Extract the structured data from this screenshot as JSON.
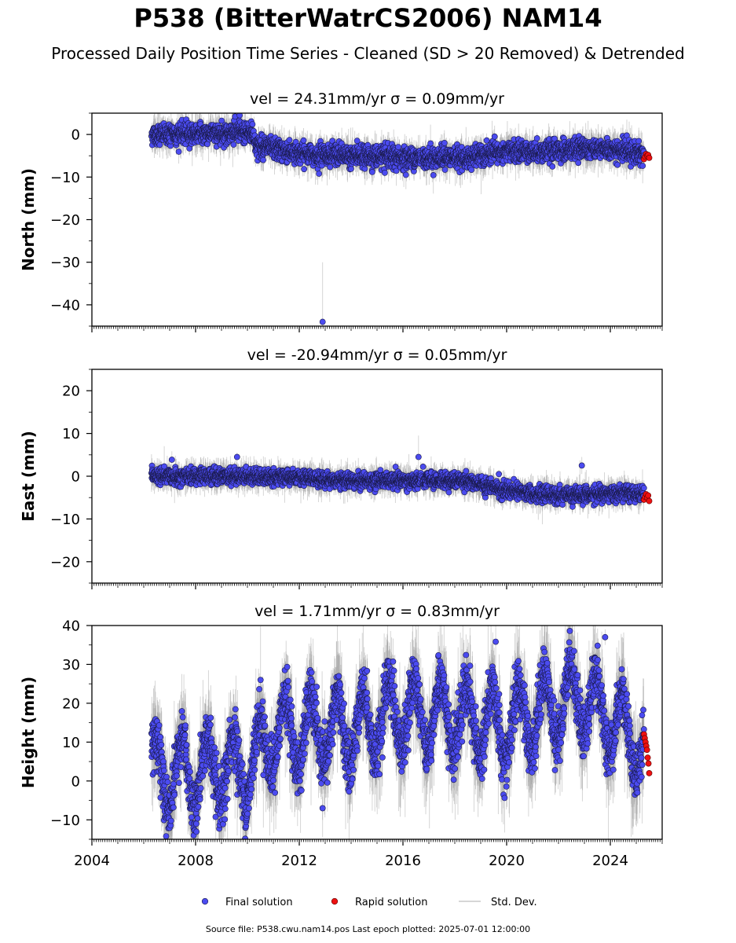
{
  "header": {
    "title": "P538 (BitterWatrCS2006) NAM14",
    "subtitle": "Processed Daily Position Time Series - Cleaned (SD > 20 Removed) & Detrended"
  },
  "footer": {
    "text": "Source file: P538.cwu.nam14.pos  Last epoch plotted: 2025-07-01 12:00:00"
  },
  "legend": {
    "final_label": "Final solution",
    "rapid_label": "Rapid solution",
    "sd_label": "Std. Dev."
  },
  "colors": {
    "final": "#4b4bf0",
    "rapid": "#ee1111",
    "sd": "#9a9a9a"
  },
  "chart_data": [
    {
      "type": "scatter",
      "title": "vel = 24.31mm/yr   σ = 0.09mm/yr",
      "ylabel": "North (mm)",
      "xlim": [
        2004.0,
        2026.0
      ],
      "ylim": [
        -45,
        5
      ],
      "yticks": [
        0,
        -10,
        -20,
        -30,
        -40
      ],
      "xticks": [
        2004,
        2008,
        2012,
        2016,
        2020,
        2024
      ],
      "trend": [
        [
          2006.3,
          0
        ],
        [
          2010.2,
          0.5
        ],
        [
          2010.3,
          -2.5
        ],
        [
          2012.0,
          -4.5
        ],
        [
          2014.0,
          -5
        ],
        [
          2016.0,
          -5.5
        ],
        [
          2018.5,
          -5.5
        ],
        [
          2020.0,
          -4
        ],
        [
          2022.0,
          -4
        ],
        [
          2023.0,
          -3
        ],
        [
          2025.3,
          -4.5
        ]
      ],
      "noise": 1.2,
      "sd_scale": 1.6,
      "outliers": [
        [
          2012.9,
          -44.0,
          14
        ],
        [
          2009.7,
          4.5,
          1
        ],
        [
          2015.3,
          -9,
          2
        ],
        [
          2017.6,
          -2,
          3
        ]
      ],
      "rapid": {
        "x_start": 2025.3,
        "x_end": 2025.5,
        "values": [
          -5.8,
          -5.2,
          -4.6,
          -5.0,
          -4.8,
          -5.5
        ]
      }
    },
    {
      "type": "scatter",
      "title": "vel = -20.94mm/yr   σ = 0.05mm/yr",
      "ylabel": "East (mm)",
      "xlim": [
        2004.0,
        2026.0
      ],
      "ylim": [
        -25,
        25
      ],
      "yticks": [
        20,
        10,
        0,
        -10,
        -20
      ],
      "xticks": [
        2004,
        2008,
        2012,
        2016,
        2020,
        2024
      ],
      "trend": [
        [
          2006.3,
          0
        ],
        [
          2010.0,
          0
        ],
        [
          2014.0,
          -1
        ],
        [
          2018.5,
          -1
        ],
        [
          2020.0,
          -3.5
        ],
        [
          2022.0,
          -4.5
        ],
        [
          2025.3,
          -4
        ]
      ],
      "noise": 0.9,
      "sd_scale": 1.3,
      "outliers": [
        [
          2016.6,
          4.5,
          5
        ],
        [
          2022.9,
          2.5,
          2
        ],
        [
          2009.6,
          4.5,
          1
        ],
        [
          2019.7,
          0.5,
          1
        ]
      ],
      "rapid": {
        "x_start": 2025.3,
        "x_end": 2025.5,
        "values": [
          -5.5,
          -4.8,
          -4.2,
          -5.0,
          -4.5,
          -5.8
        ]
      }
    },
    {
      "type": "scatter",
      "title": "vel = 1.71mm/yr   σ = 0.83mm/yr",
      "ylabel": "Height (mm)",
      "xlabel": "",
      "xlim": [
        2004.0,
        2026.0
      ],
      "ylim": [
        -15,
        40
      ],
      "yticks": [
        40,
        30,
        20,
        10,
        0,
        -10
      ],
      "xticks": [
        2004,
        2008,
        2012,
        2016,
        2020,
        2024
      ],
      "trend": [
        [
          2006.3,
          2
        ],
        [
          2010.0,
          3
        ],
        [
          2011.0,
          12
        ],
        [
          2014.0,
          13
        ],
        [
          2016.0,
          18
        ],
        [
          2020.0,
          14
        ],
        [
          2022.8,
          22
        ],
        [
          2025.3,
          8
        ]
      ],
      "seasonal_amp": 9,
      "noise": 3.5,
      "sd_scale": 5,
      "outliers": [
        [
          2023.8,
          37,
          2
        ],
        [
          2012.9,
          -7,
          3
        ]
      ],
      "rapid": {
        "x_start": 2025.3,
        "x_end": 2025.5,
        "values": [
          12,
          11,
          10,
          9,
          8,
          6,
          4.5,
          2
        ]
      }
    }
  ]
}
